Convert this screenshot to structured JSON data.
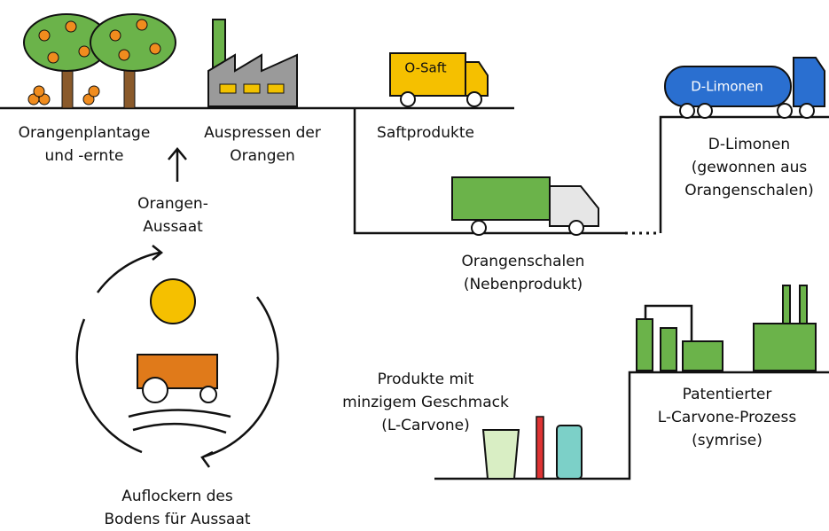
{
  "nodes": [
    {
      "label": [
        "Orangenplantage",
        "und -ernte"
      ]
    },
    {
      "label": [
        "Auspressen der",
        "Orangen"
      ]
    },
    {
      "label": [
        "Saftprodukte"
      ],
      "truck": "O-Saft"
    },
    {
      "label": [
        "D-Limonen",
        "(gewonnen aus",
        "Orangenschalen)"
      ],
      "tank": "D-Limonen"
    },
    {
      "label": [
        "Orangenschalen",
        "(Nebenprodukt)"
      ]
    },
    {
      "label": [
        "Orangen-",
        "Aussaat"
      ]
    },
    {
      "label": [
        "Produkte mit",
        "minzigem Geschmack",
        "(L-Carvone)"
      ]
    },
    {
      "label": [
        "Patentierter",
        "L-Carvone-Prozess",
        "(symrise)"
      ]
    },
    {
      "label": [
        "Auflockern des",
        "Bodens für Aussaat"
      ]
    }
  ]
}
